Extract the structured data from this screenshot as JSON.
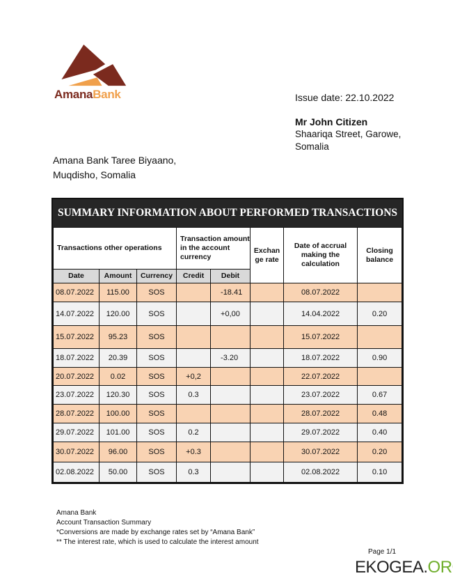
{
  "logo": {
    "text_part1": "Amana",
    "text_part2": "Bank",
    "colors": {
      "dark": "#7b2a1e",
      "orange": "#f0a04b"
    }
  },
  "issue_date": "Issue date: 22.10.2022",
  "customer": {
    "name": "Mr John Citizen",
    "address_line1": "Shaariqa Street, Garowe,",
    "address_line2": "Somalia"
  },
  "bank_address": {
    "line1": "Amana Bank Taree Biyaano,",
    "line2": "Muqdisho, Somalia"
  },
  "table": {
    "title": "SUMMARY INFORMATION ABOUT PERFORMED TRANSACTIONS",
    "group_headers": {
      "other_ops": "Transactions other operations",
      "amount_acct": "Transaction amount in the account currency",
      "exchange": "Exchan ge rate",
      "accrual": "Date of accrual making the calculation",
      "closing": "Closing balance"
    },
    "sub_headers": [
      "Date",
      "Amount",
      "Currency",
      "Credit",
      "Debit"
    ],
    "rows": [
      {
        "date": "08.07.2022",
        "amount": "115.00",
        "currency": "SOS",
        "credit": "",
        "debit": "-18.41",
        "rate": "",
        "accrual": "08.07.2022",
        "closing": ""
      },
      {
        "date": "14.07.2022",
        "amount": "120.00",
        "currency": "SOS",
        "credit": "",
        "debit": "+0,00",
        "rate": "",
        "accrual": "14.04.2022",
        "closing": "0.20"
      },
      {
        "date": "15.07.2022",
        "amount": "95.23",
        "currency": "SOS",
        "credit": "",
        "debit": "",
        "rate": "",
        "accrual": "15.07.2022",
        "closing": ""
      },
      {
        "date": "18.07.2022",
        "amount": "20.39",
        "currency": "SOS",
        "credit": "",
        "debit": "-3.20",
        "rate": "",
        "accrual": "18.07.2022",
        "closing": "0.90"
      },
      {
        "date": "20.07.2022",
        "amount": "0.02",
        "currency": "SOS",
        "credit": "+0,2",
        "debit": "",
        "rate": "",
        "accrual": "22.07.2022",
        "closing": ""
      },
      {
        "date": "23.07.2022",
        "amount": "120.30",
        "currency": "SOS",
        "credit": "0.3",
        "debit": "",
        "rate": "",
        "accrual": "23.07.2022",
        "closing": "0.67"
      },
      {
        "date": "28.07.2022",
        "amount": "100.00",
        "currency": "SOS",
        "credit": "",
        "debit": "",
        "rate": "",
        "accrual": "28.07.2022",
        "closing": "0.48"
      },
      {
        "date": "29.07.2022",
        "amount": "101.00",
        "currency": "SOS",
        "credit": "0.2",
        "debit": "",
        "rate": "",
        "accrual": "29.07.2022",
        "closing": "0.40"
      },
      {
        "date": "30.07.2022",
        "amount": "96.00",
        "currency": "SOS",
        "credit": "+0.3",
        "debit": "",
        "rate": "",
        "accrual": "30.07.2022",
        "closing": "0.20"
      },
      {
        "date": "02.08.2022",
        "amount": "50.00",
        "currency": "SOS",
        "credit": "0.3",
        "debit": "",
        "rate": "",
        "accrual": "02.08.2022",
        "closing": "0.10"
      }
    ]
  },
  "footer": {
    "lines": [
      "Amana Bank",
      "Account Transaction Summary",
      "*Conversions are made by exchange rates set by “Amana Bank”",
      "** The interest rate, which is used to calculate the interest amount"
    ],
    "page": "Page 1/1"
  },
  "watermark": {
    "part1": "EKOGEA.",
    "part2": "ORG"
  }
}
